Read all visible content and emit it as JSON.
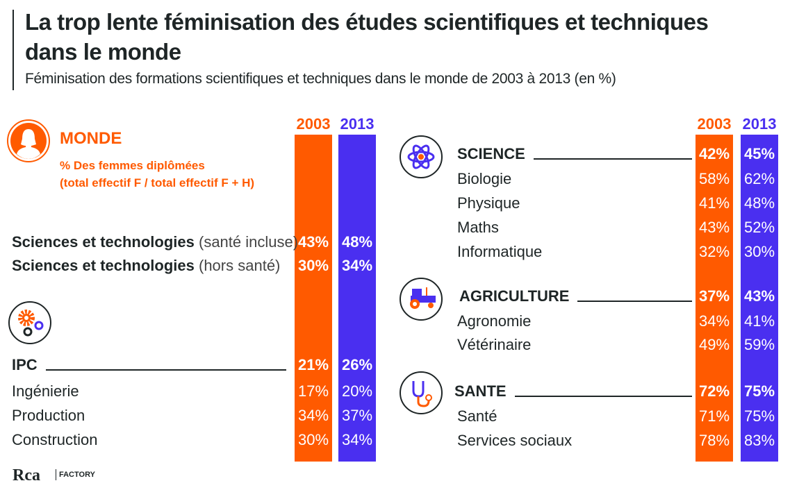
{
  "title": "La trop lente féminisation des études scientifiques et techniques dans le monde",
  "subtitle": "Féminisation des formations scientifiques et techniques dans le monde de 2003 à 2013 (en %)",
  "colors": {
    "y2003": "#ff5a00",
    "y2013": "#4a2ff0",
    "text": "#1e2526"
  },
  "monde": {
    "label": "MONDE",
    "desc1": "% Des femmes diplômées",
    "desc2": "(total effectif F / total effectif F + H)",
    "icon": "woman-icon"
  },
  "logo": {
    "text": "Rca",
    "sub": "FACTORY"
  },
  "chart_data": {
    "type": "table",
    "columns": [
      "2003",
      "2013"
    ],
    "left": [
      {
        "label": "Sciences et technologies",
        "note": "(santé incluse)",
        "v2003": "43%",
        "v2013": "48%",
        "head": true
      },
      {
        "label": "Sciences et technologies",
        "note": "(hors santé)",
        "v2003": "30%",
        "v2013": "34%",
        "head": true
      },
      {
        "label": "IPC",
        "v2003": "21%",
        "v2013": "26%",
        "head": true,
        "line": true,
        "icon": "gears-icon"
      },
      {
        "label": "Ingénierie",
        "v2003": "17%",
        "v2013": "20%"
      },
      {
        "label": "Production",
        "v2003": "34%",
        "v2013": "37%"
      },
      {
        "label": "Construction",
        "v2003": "30%",
        "v2013": "34%"
      }
    ],
    "right": [
      {
        "label": "SCIENCE",
        "v2003": "42%",
        "v2013": "45%",
        "head": true,
        "line": true,
        "icon": "atom-icon"
      },
      {
        "label": "Biologie",
        "v2003": "58%",
        "v2013": "62%"
      },
      {
        "label": "Physique",
        "v2003": "41%",
        "v2013": "48%"
      },
      {
        "label": "Maths",
        "v2003": "43%",
        "v2013": "52%"
      },
      {
        "label": "Informatique",
        "v2003": "32%",
        "v2013": "30%"
      },
      {
        "label": "AGRICULTURE",
        "v2003": "37%",
        "v2013": "43%",
        "head": true,
        "line": true,
        "icon": "tractor-icon"
      },
      {
        "label": "Agronomie",
        "v2003": "34%",
        "v2013": "41%"
      },
      {
        "label": "Vétérinaire",
        "v2003": "49%",
        "v2013": "59%"
      },
      {
        "label": "SANTE",
        "v2003": "72%",
        "v2013": "75%",
        "head": true,
        "line": true,
        "icon": "stethoscope-icon"
      },
      {
        "label": "Santé",
        "v2003": "71%",
        "v2013": "75%"
      },
      {
        "label": "Services sociaux",
        "v2003": "78%",
        "v2013": "83%"
      }
    ]
  }
}
